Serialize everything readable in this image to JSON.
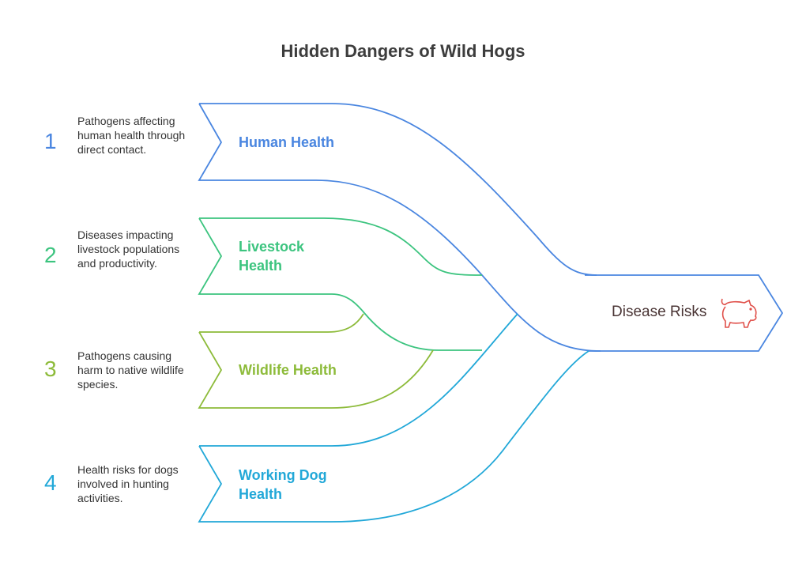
{
  "title": "Hidden Dangers of Wild Hogs",
  "target": {
    "label": "Disease Risks",
    "icon": "pig-icon",
    "color": "#e0504a"
  },
  "items": [
    {
      "number": "1",
      "label": "Human Health",
      "description": "Pathogens affecting human health through direct contact.",
      "color": "#4a86e0"
    },
    {
      "number": "2",
      "label": "Livestock Health",
      "description": "Diseases impacting livestock populations and productivity.",
      "color": "#3cc47f"
    },
    {
      "number": "3",
      "label": "Wildlife Health",
      "description": "Pathogens causing harm to native wildlife species.",
      "color": "#8dbb3a"
    },
    {
      "number": "4",
      "label": "Working Dog Health",
      "description": "Health risks for dogs involved in hunting activities.",
      "color": "#22a8d8"
    }
  ]
}
